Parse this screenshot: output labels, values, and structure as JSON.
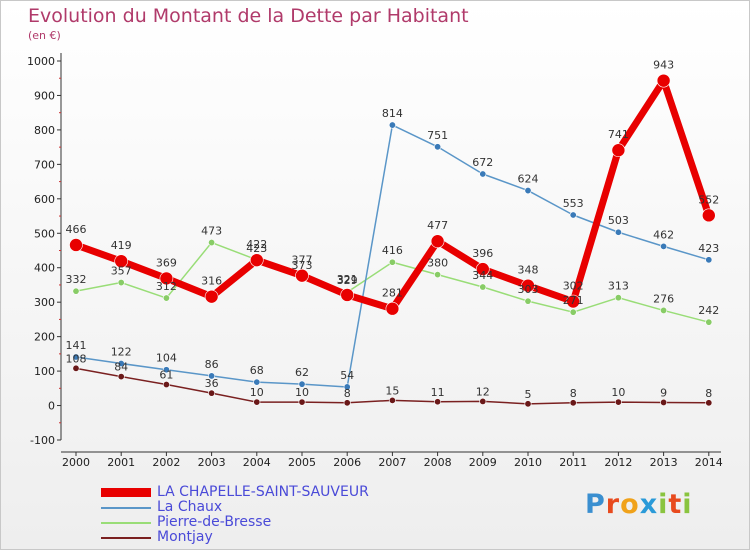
{
  "header": {
    "title": "Evolution du Montant de la Dette par Habitant",
    "subtitle": "(en €)"
  },
  "logo": {
    "text": "Proxiti",
    "letters": [
      {
        "char": "P",
        "color": "#3a8fd0"
      },
      {
        "char": "r",
        "color": "#e84a1e"
      },
      {
        "char": "o",
        "color": "#f0a21a"
      },
      {
        "char": "x",
        "color": "#2a9ad8"
      },
      {
        "char": "i",
        "color": "#8ac43f"
      },
      {
        "char": "t",
        "color": "#e84a1e"
      },
      {
        "char": "i",
        "color": "#8ac43f"
      }
    ]
  },
  "chart_data": {
    "type": "line",
    "title": "Evolution du Montant de la Dette par Habitant",
    "subtitle": "(en €)",
    "x": [
      2000,
      2001,
      2002,
      2003,
      2004,
      2005,
      2006,
      2007,
      2008,
      2009,
      2010,
      2011,
      2012,
      2013,
      2014
    ],
    "ylim": [
      -100,
      1000
    ],
    "yticks": [
      -100,
      0,
      100,
      200,
      300,
      400,
      500,
      600,
      700,
      800,
      900,
      1000
    ],
    "grid": false,
    "legend_position": "bottom-left",
    "series": [
      {
        "name": "LA CHAPELLE-SAINT-SAUVEUR",
        "color": "#e80000",
        "marker_color": "#e80000",
        "values": [
          466,
          419,
          369,
          316,
          422,
          377,
          321,
          281,
          477,
          396,
          348,
          302,
          741,
          943,
          552
        ]
      },
      {
        "name": "La Chaux",
        "color": "#5a96c8",
        "marker_color": "#3a7ab8",
        "values": [
          141,
          122,
          104,
          86,
          68,
          62,
          54,
          814,
          751,
          672,
          624,
          553,
          503,
          462,
          423
        ]
      },
      {
        "name": "Pierre-de-Bresse",
        "color": "#99dd77",
        "marker_color": "#88cc66",
        "values": [
          332,
          357,
          312,
          473,
          423,
          373,
          329,
          416,
          380,
          344,
          303,
          271,
          313,
          276,
          242
        ]
      },
      {
        "name": "Montjay",
        "color": "#7a2020",
        "marker_color": "#6a1818",
        "values": [
          108,
          84,
          61,
          36,
          10,
          10,
          8,
          15,
          11,
          12,
          5,
          8,
          10,
          9,
          8
        ]
      }
    ]
  }
}
